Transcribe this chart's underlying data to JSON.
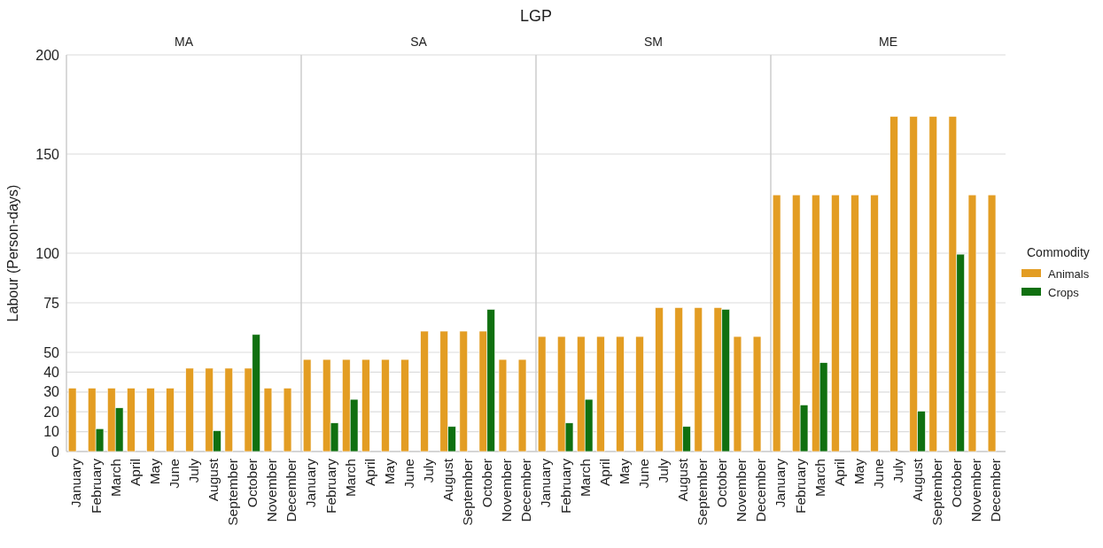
{
  "chart_data": [
    {
      "type": "bar",
      "title": "MA",
      "annotations": [
        "LGP"
      ],
      "ylabel": "Labour (Person-days)",
      "categories": [
        "January",
        "February",
        "March",
        "April",
        "May",
        "June",
        "July",
        "August",
        "September",
        "October",
        "November",
        "December"
      ],
      "series": [
        {
          "color": "#e39d23",
          "values": [
            32,
            32,
            32,
            32,
            32,
            32,
            42,
            42,
            42,
            42,
            32,
            32
          ]
        },
        {
          "color": "#107010",
          "values": [
            null,
            11.5,
            22,
            null,
            null,
            null,
            null,
            10.5,
            null,
            59,
            null,
            null
          ]
        }
      ],
      "ylim": [
        0,
        200
      ],
      "yticks": [
        0,
        10,
        20,
        30,
        40,
        50,
        75,
        100,
        150,
        200
      ],
      "grid": "y"
    },
    {
      "type": "bar",
      "title": "SA",
      "categories": [
        "January",
        "February",
        "March",
        "April",
        "May",
        "June",
        "July",
        "August",
        "September",
        "October",
        "November",
        "December"
      ],
      "series": [
        {
          "color": "#e39d23",
          "values": [
            46.4,
            46.4,
            46.4,
            46.4,
            46.4,
            46.4,
            60.7,
            60.7,
            60.7,
            60.7,
            46.4,
            46.4
          ]
        },
        {
          "color": "#107010",
          "values": [
            null,
            14.4,
            26.3,
            null,
            null,
            null,
            null,
            12.6,
            null,
            71.7,
            null,
            null
          ]
        }
      ],
      "ylim": [
        0,
        200
      ],
      "yticks": [
        0,
        10,
        20,
        30,
        40,
        50,
        75,
        100,
        150,
        200
      ],
      "grid": "y",
      "tick_labels": "x"
    },
    {
      "type": "bar",
      "title": "SM",
      "categories": [
        "January",
        "February",
        "March",
        "April",
        "May",
        "June",
        "July",
        "August",
        "September",
        "October",
        "November",
        "December"
      ],
      "series": [
        {
          "color": "#e39d23",
          "values": [
            58,
            58,
            58,
            58,
            58,
            58,
            72.6,
            72.6,
            72.6,
            72.6,
            58,
            58
          ]
        },
        {
          "color": "#107010",
          "values": [
            null,
            14.4,
            26.3,
            null,
            null,
            null,
            null,
            12.6,
            null,
            71.7,
            null,
            null
          ]
        }
      ],
      "ylim": [
        0,
        200
      ],
      "yticks": [
        0,
        10,
        20,
        30,
        40,
        50,
        75,
        100,
        150,
        200
      ],
      "grid": "y",
      "tick_labels": "x"
    },
    {
      "type": "bar",
      "title": "ME",
      "legend_title": "Commodity",
      "legend": "right",
      "categories": [
        "January",
        "February",
        "March",
        "April",
        "May",
        "June",
        "July",
        "August",
        "September",
        "October",
        "November",
        "December"
      ],
      "series": [
        {
          "name": "Animals",
          "color": "#e39d23",
          "values": [
            129.4,
            129.4,
            129.4,
            129.4,
            129.4,
            129.4,
            169,
            169,
            169,
            169,
            129.4,
            129.4
          ]
        },
        {
          "name": "Crops",
          "color": "#107010",
          "values": [
            null,
            23.5,
            44.8,
            null,
            null,
            null,
            null,
            20.4,
            null,
            99.5,
            null,
            null
          ]
        }
      ],
      "ylim": [
        0,
        200
      ],
      "yticks": [
        0,
        10,
        20,
        30,
        40,
        50,
        75,
        100,
        150,
        200
      ],
      "grid": "y",
      "tick_labels": "x"
    }
  ]
}
